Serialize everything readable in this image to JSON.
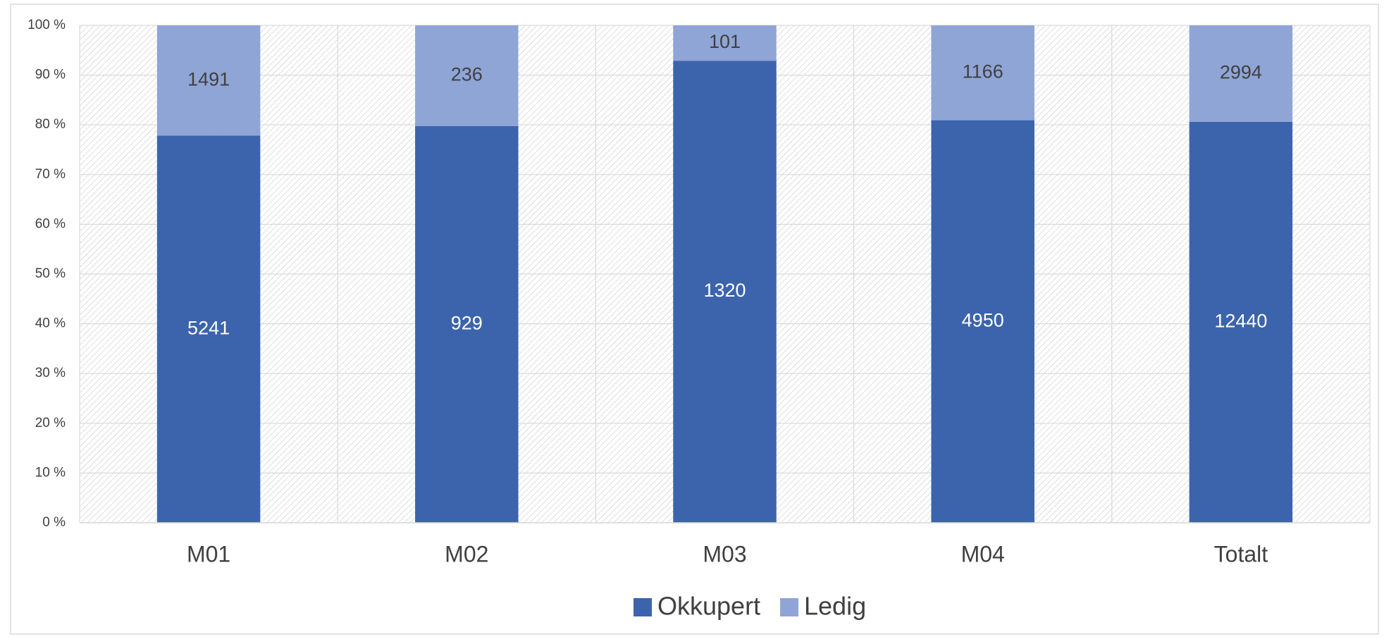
{
  "chart_data": {
    "type": "bar",
    "stacked": "percent",
    "categories": [
      "M01",
      "M02",
      "M03",
      "M04",
      "Totalt"
    ],
    "series": [
      {
        "name": "Okkupert",
        "color": "#3c64ad",
        "values": [
          5241,
          929,
          1320,
          4950,
          12440
        ]
      },
      {
        "name": "Ledig",
        "color": "#8fa5d6",
        "values": [
          1491,
          236,
          101,
          1166,
          2994
        ]
      }
    ],
    "ylim": [
      0,
      100
    ],
    "yticks": [
      {
        "value": 0,
        "label": "0 %"
      },
      {
        "value": 10,
        "label": "10 %"
      },
      {
        "value": 20,
        "label": "20 %"
      },
      {
        "value": 30,
        "label": "30 %"
      },
      {
        "value": 40,
        "label": "40 %"
      },
      {
        "value": 50,
        "label": "50 %"
      },
      {
        "value": 60,
        "label": "60 %"
      },
      {
        "value": 70,
        "label": "70 %"
      },
      {
        "value": 80,
        "label": "80 %"
      },
      {
        "value": 90,
        "label": "90 %"
      },
      {
        "value": 100,
        "label": "100 %"
      }
    ],
    "grid": true,
    "legend": "bottom"
  }
}
